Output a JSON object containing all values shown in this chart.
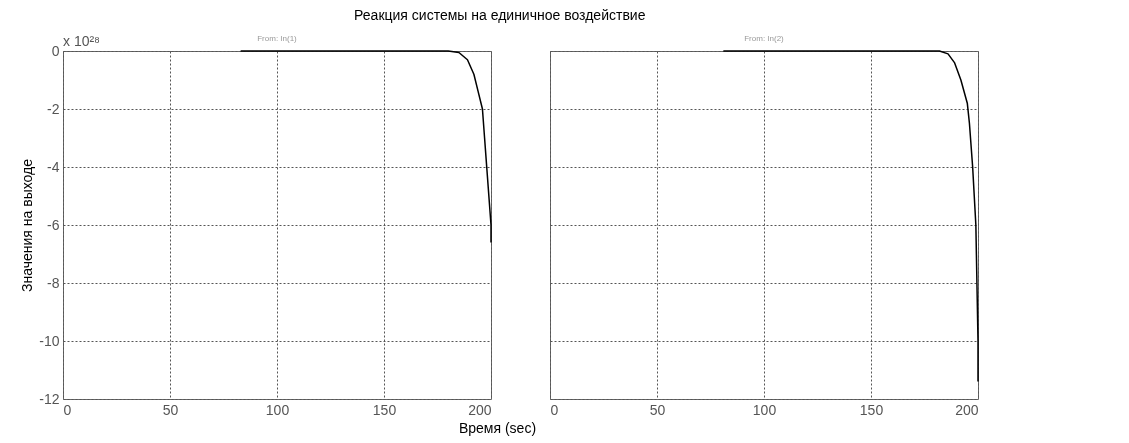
{
  "chart_data": [
    {
      "type": "line",
      "title": "Реакция системы на единичное воздействие",
      "subtitle": "From: In(1)",
      "xlabel": "Время (sec)",
      "ylabel": "Значения на выходе",
      "annotations": [
        "x 10²⁸"
      ],
      "xlim": [
        0,
        200
      ],
      "xticks": [
        0,
        50,
        100,
        150,
        200
      ],
      "ylim": [
        -12,
        0
      ],
      "yticks": [
        -12,
        -10,
        -8,
        -6,
        -4,
        -2,
        0
      ],
      "grid": true,
      "marker": "none",
      "line_style": "solid",
      "series": [
        {
          "color": "#000000",
          "x": [
            83,
            180,
            185,
            189,
            192,
            194,
            196,
            197,
            198,
            199,
            200,
            200
          ],
          "values": [
            0,
            0,
            -0.05,
            -0.3,
            -0.8,
            -1.4,
            -2,
            -3,
            -4,
            -5,
            -6,
            -6.6
          ]
        }
      ]
    },
    {
      "type": "line",
      "subtitle": "From: In(2)",
      "xlim": [
        0,
        200
      ],
      "xticks": [
        0,
        50,
        100,
        150,
        200
      ],
      "ylim": [
        -12,
        0
      ],
      "yticks": [
        -12,
        -10,
        -8,
        -6,
        -4,
        -2,
        0
      ],
      "grid": true,
      "marker": "none",
      "line_style": "solid",
      "tick_labels": "x",
      "series": [
        {
          "color": "#000000",
          "x": [
            81,
            182,
            186,
            189,
            192,
            195,
            196,
            197.5,
            199,
            199.5,
            200,
            200
          ],
          "values": [
            0,
            0,
            -0.1,
            -0.4,
            -1,
            -1.8,
            -2.5,
            -4,
            -6,
            -8,
            -10,
            -11.4
          ]
        }
      ]
    }
  ]
}
